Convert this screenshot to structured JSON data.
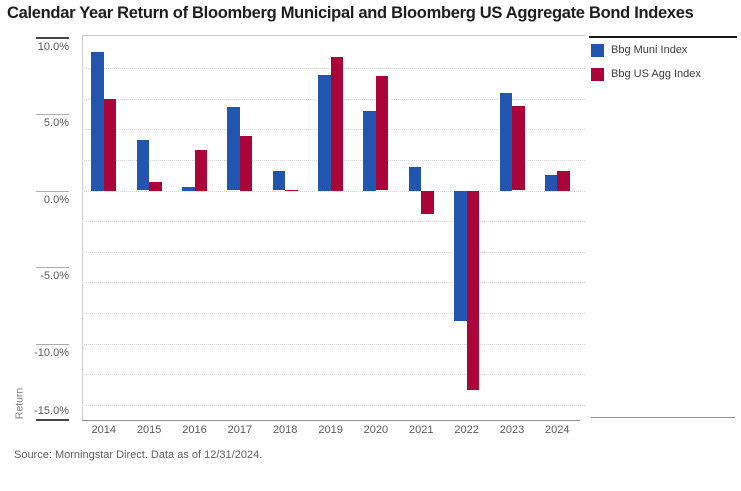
{
  "title": "Calendar Year Return of Bloomberg Municipal and Bloomberg US Aggregate Bond Indexes",
  "source_note": "Source: Morningstar Direct. Data as of 12/31/2024.",
  "legend": {
    "position": "top-right",
    "items": [
      {
        "label": "Bbg Muni Index",
        "color": "#2255b0"
      },
      {
        "label": "Bbg US Agg Index",
        "color": "#ab0439"
      }
    ]
  },
  "chart_data": {
    "type": "bar",
    "title": "Calendar Year Return of Bloomberg Municipal and Bloomberg US Aggregate Bond Indexes",
    "xlabel": "",
    "ylabel": "Return",
    "values_unit": "percent",
    "categories": [
      "2014",
      "2015",
      "2016",
      "2017",
      "2018",
      "2019",
      "2020",
      "2021",
      "2022",
      "2023",
      "2024"
    ],
    "series": [
      {
        "name": "Bbg Muni Index",
        "color": "#2255b0",
        "values": [
          9.05,
          3.3,
          0.25,
          5.45,
          1.28,
          7.54,
          5.21,
          1.52,
          -8.53,
          6.4,
          1.05
        ]
      },
      {
        "name": "Bbg US Agg Index",
        "color": "#ab0439",
        "values": [
          5.97,
          0.55,
          2.65,
          3.54,
          0.01,
          8.72,
          7.51,
          -1.54,
          -13.01,
          5.53,
          1.25
        ]
      }
    ],
    "y_ticks": [
      {
        "value": 10,
        "label": "10.0%"
      },
      {
        "value": 5,
        "label": "5.0%"
      },
      {
        "value": 0,
        "label": "0.0%"
      },
      {
        "value": -5,
        "label": "-5.0%"
      },
      {
        "value": -10,
        "label": "-10.0%"
      },
      {
        "value": -15,
        "label": "-15.0%"
      }
    ],
    "ylim": [
      -15,
      10.1
    ],
    "gridlines": {
      "orientation": "horizontal",
      "style": "dotted",
      "step": 2,
      "from": 8,
      "to": -14
    },
    "legend_position": "top-right",
    "grid": "on"
  }
}
